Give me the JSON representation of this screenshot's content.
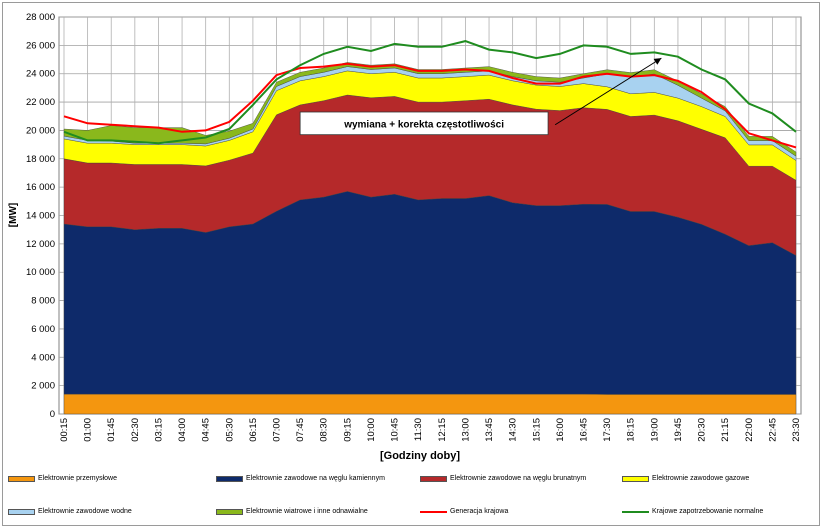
{
  "chart_data": {
    "type": "area",
    "title": "",
    "xlabel": "[Godziny doby]",
    "ylabel": "[MW]",
    "ylim": [
      0,
      28000
    ],
    "y_ticks": [
      0,
      2000,
      4000,
      6000,
      8000,
      10000,
      12000,
      14000,
      16000,
      18000,
      20000,
      22000,
      24000,
      26000,
      28000
    ],
    "y_tick_labels": [
      "0",
      "2 000",
      "4 000",
      "6 000",
      "8 000",
      "10 000",
      "12 000",
      "14 000",
      "16 000",
      "18 000",
      "20 000",
      "22 000",
      "24 000",
      "26 000",
      "28 000"
    ],
    "x_tick_labels": [
      "00:15",
      "01:00",
      "01:45",
      "02:30",
      "03:15",
      "04:00",
      "04:45",
      "05:30",
      "06:15",
      "07:00",
      "07:45",
      "08:30",
      "09:15",
      "10:00",
      "10:45",
      "11:30",
      "12:15",
      "13:00",
      "13:45",
      "14:30",
      "15:15",
      "16:00",
      "16:45",
      "17:30",
      "18:15",
      "19:00",
      "19:45",
      "20:30",
      "21:15",
      "22:00",
      "22:45",
      "23:30"
    ],
    "grid": true,
    "stacked": true,
    "legend_position": "bottom",
    "series": [
      {
        "name": "Elektrownie przemysłowe",
        "kind": "area",
        "color": "#f4960f",
        "values": [
          1400,
          1400,
          1400,
          1400,
          1400,
          1400,
          1400,
          1400,
          1400,
          1400,
          1400,
          1400,
          1400,
          1400,
          1400,
          1400,
          1400,
          1400,
          1400,
          1400,
          1400,
          1400,
          1400,
          1380,
          1380,
          1380,
          1380,
          1380,
          1380,
          1380,
          1380,
          1380
        ]
      },
      {
        "name": "Elektrownie zawodowe na węglu kamiennym",
        "kind": "area",
        "color": "#0e2a6a",
        "values": [
          12000,
          11800,
          11800,
          11600,
          11700,
          11700,
          11400,
          11800,
          12000,
          12900,
          13700,
          13900,
          14300,
          13900,
          14100,
          13700,
          13800,
          13800,
          14000,
          13500,
          13300,
          13300,
          13400,
          13400,
          12900,
          12900,
          12500,
          12000,
          11300,
          10500,
          10700,
          9800
        ]
      },
      {
        "name": "Elektrownie zawodowe na węglu brunatnym",
        "kind": "area",
        "color": "#b5292a",
        "values": [
          4600,
          4500,
          4500,
          4600,
          4500,
          4500,
          4700,
          4700,
          5000,
          6800,
          6700,
          6800,
          6800,
          7000,
          6900,
          6900,
          6800,
          6900,
          6800,
          6900,
          6800,
          6700,
          6800,
          6700,
          6700,
          6800,
          6800,
          6700,
          6800,
          5600,
          5400,
          5300
        ]
      },
      {
        "name": "Elektrownie zawodowe gazowe",
        "kind": "area",
        "color": "#ffff00",
        "values": [
          1400,
          1400,
          1400,
          1400,
          1400,
          1400,
          1400,
          1400,
          1500,
          1700,
          1700,
          1700,
          1700,
          1700,
          1700,
          1700,
          1700,
          1700,
          1700,
          1700,
          1700,
          1700,
          1700,
          1600,
          1600,
          1600,
          1600,
          1600,
          1500,
          1500,
          1500,
          1400
        ]
      },
      {
        "name": "Elektrownie zawodowe wodne",
        "kind": "area",
        "color": "#a8d2f0",
        "values": [
          200,
          200,
          150,
          100,
          100,
          100,
          150,
          150,
          200,
          300,
          300,
          300,
          300,
          300,
          300,
          300,
          300,
          300,
          300,
          300,
          300,
          300,
          400,
          900,
          1200,
          1300,
          900,
          600,
          400,
          300,
          300,
          300
        ]
      },
      {
        "name": "Elektrownie wiatrowe i inne odnawialne",
        "kind": "area",
        "color": "#8ab81c",
        "values": [
          500,
          700,
          1100,
          1100,
          1100,
          1100,
          600,
          500,
          400,
          300,
          300,
          300,
          300,
          300,
          300,
          300,
          300,
          300,
          300,
          300,
          300,
          300,
          300,
          300,
          300,
          300,
          300,
          300,
          300,
          300,
          300,
          300
        ]
      },
      {
        "name": "Generacja krajowa",
        "kind": "line",
        "color": "#ff0000",
        "values": [
          21000,
          20500,
          20400,
          20300,
          20200,
          19900,
          20000,
          20600,
          22100,
          23900,
          24400,
          24500,
          24700,
          24500,
          24600,
          24200,
          24200,
          24300,
          24200,
          23700,
          23300,
          23300,
          23800,
          24000,
          23800,
          23900,
          23500,
          22700,
          21500,
          19800,
          19300,
          18800
        ]
      },
      {
        "name": "Krajowe zapotrzebowanie normalne",
        "kind": "line",
        "color": "#1f8c1f",
        "values": [
          19900,
          19300,
          19300,
          19200,
          19100,
          19300,
          19500,
          20100,
          21800,
          23600,
          24600,
          25400,
          25900,
          25600,
          26100,
          25900,
          25900,
          26300,
          25700,
          25500,
          25100,
          25400,
          26000,
          25900,
          25400,
          25500,
          25200,
          24300,
          23600,
          21900,
          21200,
          19900
        ]
      }
    ],
    "annotation": {
      "text": "wymiana + korekta częstotliwości",
      "arrow_to_x": 25.3,
      "arrow_to_y": 25100,
      "arrow_from_x": 20.8,
      "arrow_from_y": 20400,
      "box_x_from": 10.0,
      "box_x_to": 20.5,
      "box_y_top": 21300,
      "box_y_bottom": 19700
    }
  }
}
